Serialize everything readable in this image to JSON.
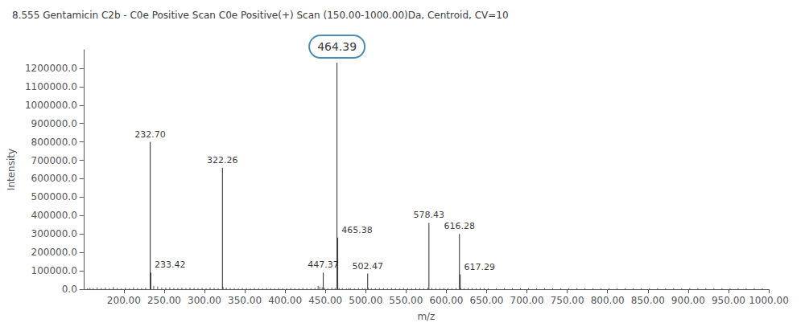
{
  "chart_data": {
    "type": "stem",
    "title": "8.555 Gentamicin C2b - C0e Positive Scan C0e Positive(+) Scan (150.00-1000.00)Da, Centroid, CV=10",
    "x_label": "m/z",
    "y_label": "Intensity",
    "xlim": [
      150,
      1000
    ],
    "ylim": [
      0,
      1300000
    ],
    "xticks": [
      {
        "value": 200,
        "label": "200.00"
      },
      {
        "value": 250,
        "label": "250.00"
      },
      {
        "value": 300,
        "label": "300.00"
      },
      {
        "value": 350,
        "label": "350.00"
      },
      {
        "value": 400,
        "label": "400.00"
      },
      {
        "value": 450,
        "label": "450.00"
      },
      {
        "value": 500,
        "label": "500.00"
      },
      {
        "value": 550,
        "label": "550.00"
      },
      {
        "value": 600,
        "label": "600.00"
      },
      {
        "value": 650,
        "label": "650.00"
      },
      {
        "value": 700,
        "label": "700.00"
      },
      {
        "value": 750,
        "label": "750.00"
      },
      {
        "value": 800,
        "label": "800.00"
      },
      {
        "value": 850,
        "label": "850.00"
      },
      {
        "value": 900,
        "label": "900.00"
      },
      {
        "value": 950,
        "label": "950.00"
      },
      {
        "value": 1000,
        "label": "1000.00"
      }
    ],
    "yticks": [
      {
        "value": 0,
        "label": "0.0"
      },
      {
        "value": 100000,
        "label": "100000.0"
      },
      {
        "value": 200000,
        "label": "200000.0"
      },
      {
        "value": 300000,
        "label": "300000.0"
      },
      {
        "value": 400000,
        "label": "400000.0"
      },
      {
        "value": 500000,
        "label": "500000.0"
      },
      {
        "value": 600000,
        "label": "600000.0"
      },
      {
        "value": 700000,
        "label": "700000.0"
      },
      {
        "value": 800000,
        "label": "800000.0"
      },
      {
        "value": 900000,
        "label": "900000.0"
      },
      {
        "value": 1000000,
        "label": "1000000.0"
      },
      {
        "value": 1100000,
        "label": "1100000.0"
      },
      {
        "value": 1200000,
        "label": "1200000.0"
      }
    ],
    "grid": false,
    "series": [
      {
        "color": "#555555",
        "x": [
          155,
          158,
          162,
          167,
          172,
          177,
          182,
          187,
          192,
          197,
          202,
          207,
          212,
          217,
          222,
          227,
          237,
          242,
          247,
          252,
          257,
          262,
          267,
          272,
          277,
          282,
          287,
          292,
          297,
          302,
          307,
          312,
          317,
          323,
          327,
          332,
          337,
          342,
          347,
          352,
          357,
          362,
          367,
          372,
          377,
          382,
          387,
          392,
          397,
          402,
          407,
          412,
          417,
          422,
          427,
          432,
          437,
          441,
          443,
          446,
          449,
          453,
          458,
          462,
          467,
          471,
          476,
          479,
          481,
          486,
          491,
          496,
          499,
          503,
          507,
          512,
          517,
          522,
          527,
          532,
          537,
          542,
          547,
          552,
          557,
          562,
          567,
          572,
          577,
          582,
          587,
          592,
          597,
          602,
          607,
          612,
          618,
          622,
          627,
          632,
          637,
          642,
          647,
          652,
          662,
          672,
          682,
          692,
          702,
          712,
          722,
          732,
          742,
          752,
          762,
          772,
          782,
          792,
          802,
          812,
          822,
          832,
          842,
          852,
          862,
          872,
          882,
          892,
          902,
          912,
          922,
          932,
          942,
          952,
          962,
          972,
          982,
          992
        ],
        "values": [
          5000,
          8000,
          6000,
          10000,
          7000,
          9000,
          6000,
          12000,
          7000,
          5000,
          8000,
          6000,
          10000,
          7000,
          6000,
          8000,
          18000,
          14000,
          10000,
          9000,
          10000,
          7000,
          6000,
          8000,
          6000,
          9000,
          7000,
          6000,
          8000,
          6000,
          9000,
          7000,
          6000,
          13000,
          8000,
          7000,
          6000,
          5000,
          7000,
          6000,
          5000,
          7000,
          6000,
          5000,
          7000,
          6000,
          5000,
          7000,
          6000,
          5000,
          7000,
          6000,
          5000,
          7000,
          6000,
          5000,
          7000,
          18000,
          14000,
          11000,
          8000,
          6000,
          9000,
          8000,
          7000,
          6000,
          5000,
          7000,
          6000,
          5000,
          7000,
          6000,
          5000,
          8000,
          6000,
          5000,
          7000,
          6000,
          5000,
          7000,
          6000,
          5000,
          7000,
          6000,
          5000,
          7000,
          6000,
          5000,
          9000,
          7000,
          6000,
          5000,
          7000,
          6000,
          5000,
          7000,
          6000,
          5000,
          7000,
          6000,
          5000,
          7000,
          6000,
          5000,
          5000,
          6000,
          5000,
          5000,
          6000,
          5000,
          6000,
          5000,
          6000,
          5000,
          6000,
          5000,
          6000,
          5000,
          6000,
          5000,
          6000,
          5000,
          6000,
          5000,
          6000,
          5000,
          6000,
          5000,
          6000,
          5000,
          6000,
          5000,
          6000,
          5000,
          6000,
          5000,
          6000,
          5000
        ]
      },
      {
        "color": "#2a2a2a",
        "x": [
          232.7,
          233.42,
          322.26,
          447.37,
          464.39,
          465.38,
          502.47,
          578.43,
          616.28,
          617.29
        ],
        "values": [
          800000,
          90000,
          660000,
          90000,
          1230000,
          280000,
          85000,
          360000,
          300000,
          80000
        ]
      }
    ],
    "annotations": [
      {
        "x": 232.7,
        "y": 800000,
        "text": "232.70"
      },
      {
        "x": 233.42,
        "y": 90000,
        "text": "233.42"
      },
      {
        "x": 322.26,
        "y": 660000,
        "text": "322.26"
      },
      {
        "x": 447.37,
        "y": 90000,
        "text": "447.37"
      },
      {
        "x": 464.39,
        "y": 1230000,
        "text": "464.39",
        "marker": "circle",
        "color": "#1e6fa5"
      },
      {
        "x": 465.38,
        "y": 280000,
        "text": "465.38"
      },
      {
        "x": 502.47,
        "y": 85000,
        "text": "502.47"
      },
      {
        "x": 578.43,
        "y": 360000,
        "text": "578.43"
      },
      {
        "x": 616.28,
        "y": 300000,
        "text": "616.28"
      },
      {
        "x": 617.29,
        "y": 80000,
        "text": "617.29"
      }
    ]
  }
}
